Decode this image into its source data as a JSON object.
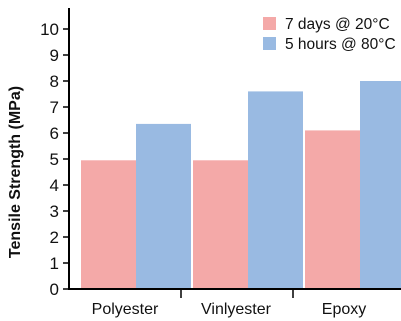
{
  "chart_data": {
    "type": "bar",
    "title": "",
    "xlabel": "",
    "ylabel": "Tensile Strength (MPa)",
    "categories": [
      "Polyester",
      "Vinlyester",
      "Epoxy"
    ],
    "series": [
      {
        "name": "7 days @ 20°C",
        "values": [
          4.95,
          4.95,
          6.1
        ],
        "color": "#f4a9a8"
      },
      {
        "name": "5 hours @ 80°C",
        "values": [
          6.35,
          7.6,
          8.0
        ],
        "color": "#99bae2"
      }
    ],
    "ylim": [
      0,
      11
    ],
    "yticks": [
      0,
      1,
      2,
      3,
      4,
      5,
      6,
      7,
      8,
      9,
      10
    ],
    "grid": false,
    "legend_position": "top-right"
  }
}
